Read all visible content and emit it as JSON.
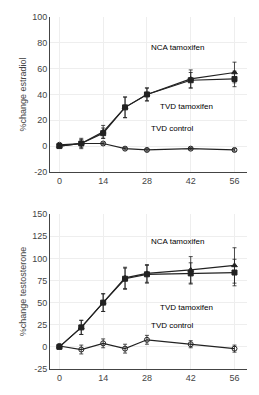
{
  "chart_data": [
    {
      "type": "line",
      "y_label": "%change estradiol",
      "x": [
        0,
        7,
        14,
        21,
        28,
        42,
        56
      ],
      "xlim": [
        -3,
        60
      ],
      "xticks": [
        0,
        14,
        28,
        42,
        56
      ],
      "ylim": [
        -20,
        100
      ],
      "yticks": [
        -20,
        0,
        20,
        40,
        60,
        80,
        100
      ],
      "series": [
        {
          "name": "NCA tamoxifen",
          "color": "#222222",
          "marker": "triangle",
          "values": [
            0,
            2,
            11,
            30,
            40,
            52,
            57
          ],
          "error": [
            1,
            3,
            5,
            8,
            5,
            7,
            8
          ]
        },
        {
          "name": "TVD tamoxifen",
          "color": "#222222",
          "marker": "square",
          "values": [
            0,
            2,
            10,
            30,
            40,
            51,
            52
          ],
          "error": [
            1,
            4,
            4,
            8,
            5,
            6,
            6
          ]
        },
        {
          "name": "TVD control",
          "color": "#222222",
          "marker": "open circle",
          "values": [
            1,
            2,
            2,
            -2,
            -3,
            -2,
            -3
          ],
          "error": [
            1,
            1,
            1,
            1,
            1,
            1,
            1
          ]
        }
      ]
    },
    {
      "type": "line",
      "y_label": "%change testosterone",
      "x": [
        0,
        7,
        14,
        21,
        28,
        42,
        56
      ],
      "xlim": [
        -3,
        60
      ],
      "xticks": [
        0,
        14,
        28,
        42,
        56
      ],
      "ylim": [
        -25,
        150
      ],
      "yticks": [
        -25,
        0,
        25,
        50,
        75,
        100,
        125,
        150
      ],
      "series": [
        {
          "name": "NCA tamoxifen",
          "color": "#222222",
          "marker": "triangle",
          "values": [
            0,
            22,
            50,
            78,
            83,
            87,
            92
          ],
          "error": [
            2,
            8,
            10,
            12,
            10,
            15,
            20
          ]
        },
        {
          "name": "TVD tamoxifen",
          "color": "#222222",
          "marker": "square",
          "values": [
            0,
            22,
            50,
            77,
            82,
            83,
            84
          ],
          "error": [
            2,
            8,
            10,
            12,
            10,
            12,
            15
          ]
        },
        {
          "name": "TVD control",
          "color": "#222222",
          "marker": "open circle",
          "values": [
            1,
            -3,
            4,
            -2,
            8,
            3,
            -2
          ],
          "error": [
            2,
            5,
            5,
            5,
            5,
            4,
            4
          ]
        }
      ]
    }
  ]
}
